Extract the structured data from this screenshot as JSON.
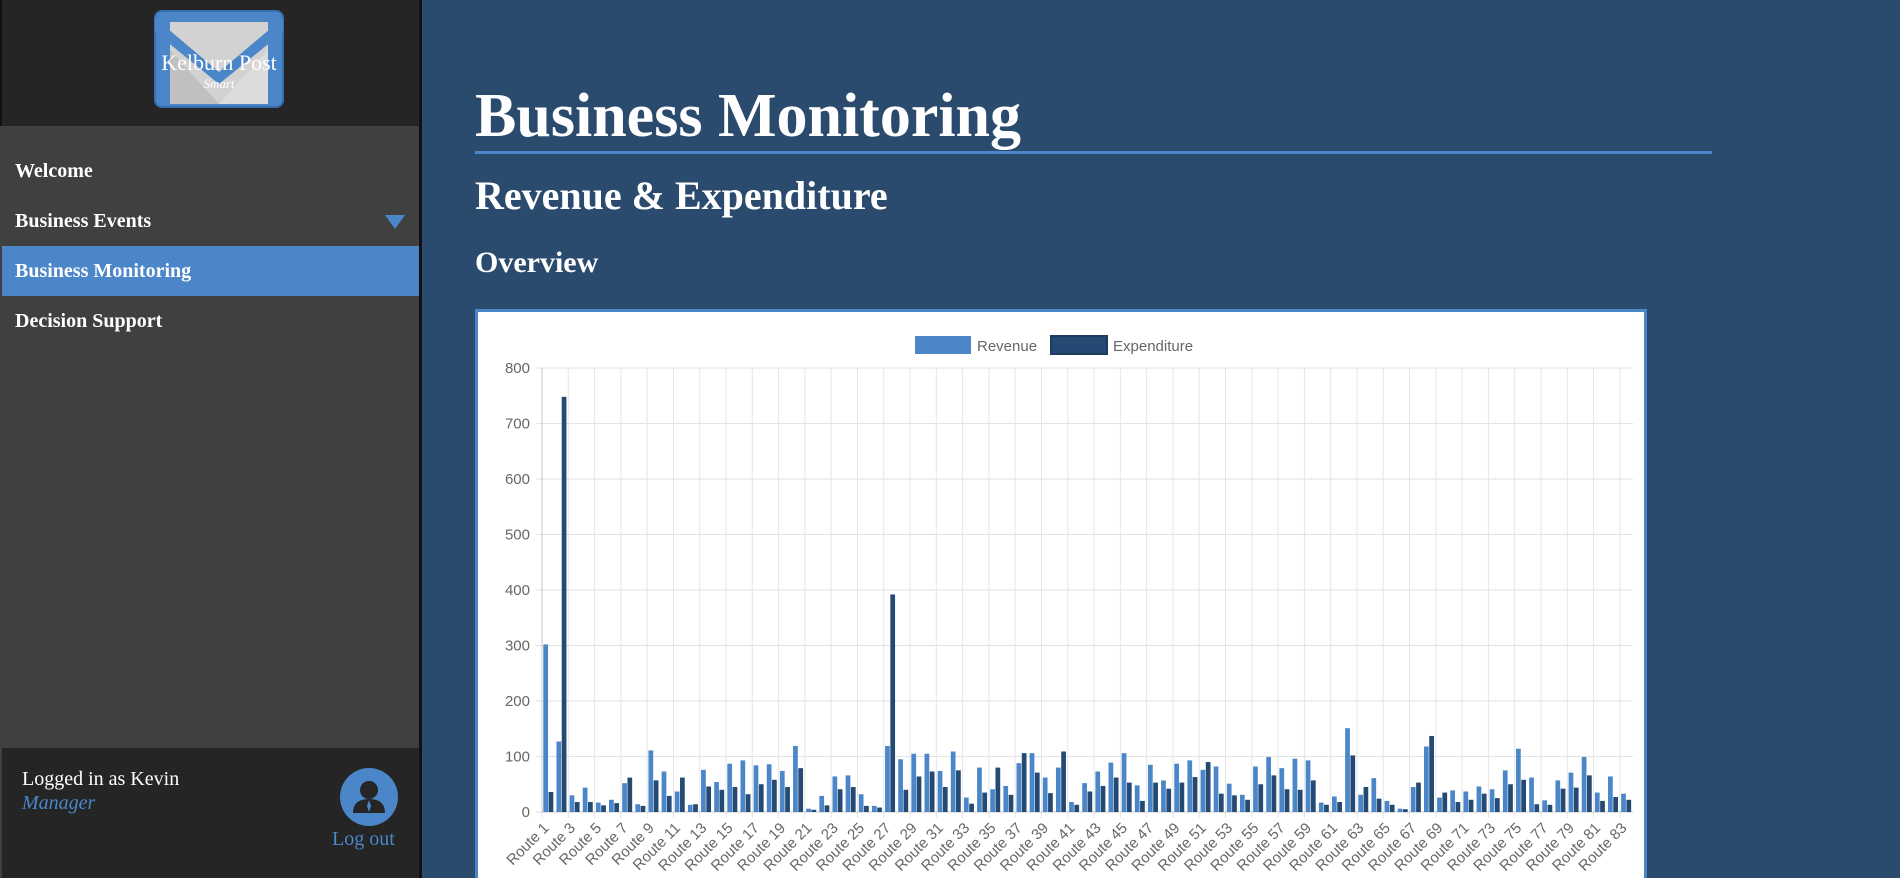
{
  "sidebar": {
    "logo": {
      "title": "Kelburn Post",
      "subtitle": "Smart"
    },
    "items": [
      {
        "label": "Welcome"
      },
      {
        "label": "Business Events"
      },
      {
        "label": "Business Monitoring"
      },
      {
        "label": "Decision Support"
      }
    ],
    "user": {
      "label": "Logged in as Kevin",
      "role": "Manager",
      "logout": "Log out"
    }
  },
  "main": {
    "title": "Business Monitoring",
    "subtitle": "Revenue & Expenditure",
    "section": "Overview"
  },
  "colors": {
    "accent": "#4a86c8",
    "dark": "#244a73",
    "background": "#2a4a6e"
  },
  "chart_data": {
    "type": "bar",
    "ylim": [
      0,
      800
    ],
    "yticks": [
      0,
      100,
      200,
      300,
      400,
      500,
      600,
      700,
      800
    ],
    "tick_labels": [
      "Route 1",
      "Route 3",
      "Route 5",
      "Route 7",
      "Route 9",
      "Route 11",
      "Route 13",
      "Route 15",
      "Route 17",
      "Route 19",
      "Route 21",
      "Route 23",
      "Route 25",
      "Route 27",
      "Route 29",
      "Route 31",
      "Route 33",
      "Route 35",
      "Route 37",
      "Route 39",
      "Route 41",
      "Route 43",
      "Route 45",
      "Route 47",
      "Route 49",
      "Route 51",
      "Route 53",
      "Route 55",
      "Route 57",
      "Route 59",
      "Route 61",
      "Route 63",
      "Route 65",
      "Route 67",
      "Route 69",
      "Route 71",
      "Route 73",
      "Route 75",
      "Route 77",
      "Route 79",
      "Route 81",
      "Route 83"
    ],
    "grid": true,
    "legend": "top",
    "series": [
      {
        "name": "Revenue",
        "color": "#4a86c8",
        "values": [
          302,
          127,
          30,
          44,
          17,
          22,
          52,
          14,
          111,
          73,
          37,
          13,
          76,
          54,
          87,
          93,
          84,
          86,
          74,
          119,
          6,
          29,
          64,
          66,
          32,
          11,
          119,
          95,
          105,
          105,
          74,
          109,
          26,
          80,
          41,
          47,
          88,
          106,
          62,
          80,
          18,
          52,
          73,
          89,
          106,
          48,
          85,
          57,
          87,
          93,
          76,
          82,
          51,
          31,
          82,
          99,
          79,
          96,
          93,
          17,
          28,
          151,
          31,
          61,
          20,
          6,
          45,
          118,
          26,
          39,
          37,
          46,
          41,
          75,
          114,
          62,
          21,
          57,
          71,
          99,
          35,
          64,
          33
        ]
      },
      {
        "name": "Expenditure",
        "color": "#244a73",
        "values": [
          36,
          748,
          18,
          18,
          12,
          16,
          62,
          11,
          57,
          29,
          62,
          14,
          46,
          40,
          45,
          32,
          50,
          58,
          45,
          79,
          4,
          12,
          41,
          45,
          11,
          8,
          392,
          40,
          64,
          73,
          45,
          75,
          15,
          35,
          80,
          31,
          106,
          71,
          34,
          109,
          13,
          37,
          47,
          62,
          53,
          20,
          53,
          42,
          53,
          63,
          90,
          33,
          30,
          22,
          50,
          66,
          41,
          40,
          57,
          13,
          18,
          102,
          45,
          24,
          13,
          5,
          53,
          137,
          35,
          18,
          22,
          33,
          25,
          50,
          58,
          14,
          13,
          42,
          44,
          66,
          20,
          27,
          22
        ]
      }
    ]
  }
}
